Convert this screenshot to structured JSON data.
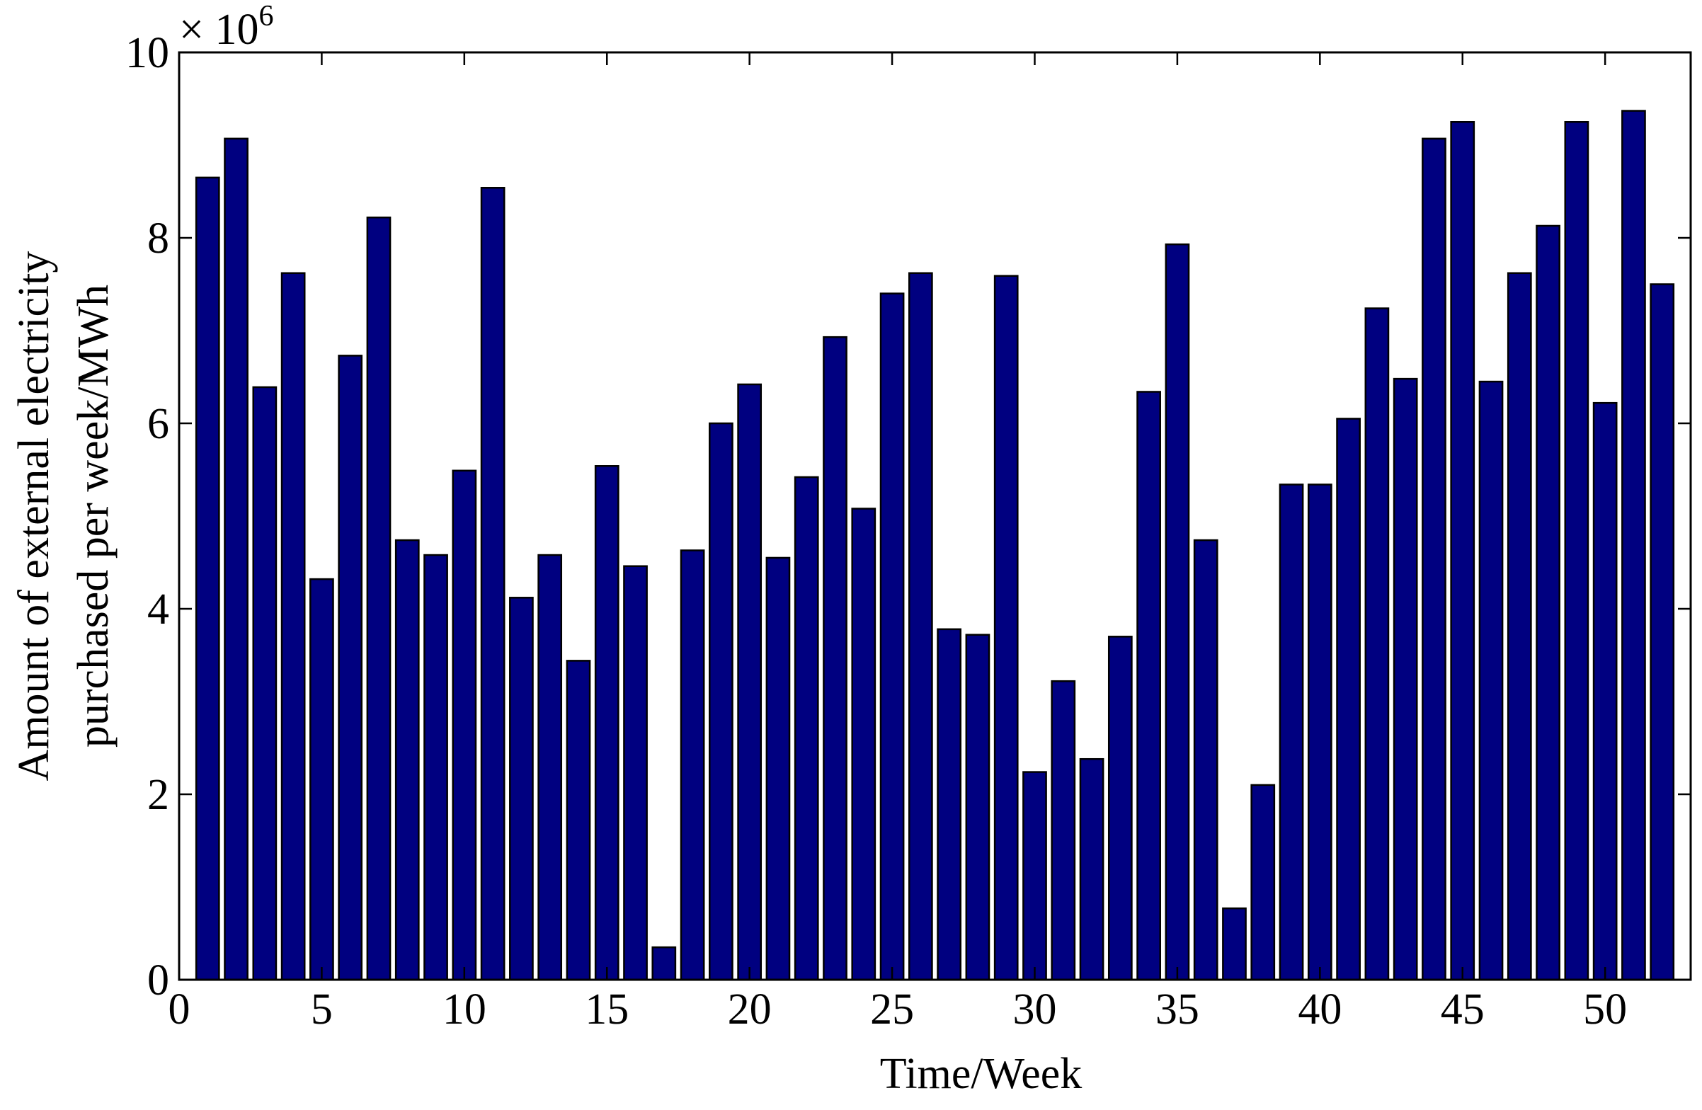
{
  "chart_data": {
    "type": "bar",
    "title": "",
    "xlabel": "Time/Week",
    "ylabel_lines": [
      "Amount of external electricity",
      "purchased per week/MWh"
    ],
    "y_exponent_label": "× 10",
    "y_exponent_power": "6",
    "xlim": [
      0,
      53
    ],
    "ylim": [
      0,
      10
    ],
    "x_ticks": [
      0,
      5,
      10,
      15,
      20,
      25,
      30,
      35,
      40,
      45,
      50
    ],
    "y_ticks": [
      0,
      2,
      4,
      6,
      8,
      10
    ],
    "grid": false,
    "bar_color": "#000080",
    "x": [
      1,
      2,
      3,
      4,
      5,
      6,
      7,
      8,
      9,
      10,
      11,
      12,
      13,
      14,
      15,
      16,
      17,
      18,
      19,
      20,
      21,
      22,
      23,
      24,
      25,
      26,
      27,
      28,
      29,
      30,
      31,
      32,
      33,
      34,
      35,
      36,
      37,
      38,
      39,
      40,
      41,
      42,
      43,
      44,
      45,
      46,
      47,
      48,
      49,
      50,
      51,
      52
    ],
    "values": [
      8.65,
      9.07,
      6.39,
      7.62,
      4.32,
      6.73,
      8.22,
      4.74,
      4.58,
      5.49,
      8.54,
      4.12,
      4.58,
      3.44,
      5.54,
      4.46,
      0.35,
      4.63,
      6.0,
      6.42,
      4.55,
      5.42,
      6.93,
      5.08,
      7.4,
      7.62,
      3.78,
      3.72,
      7.59,
      2.24,
      3.22,
      2.38,
      3.7,
      6.34,
      7.93,
      4.74,
      0.77,
      2.1,
      5.34,
      5.34,
      6.05,
      7.24,
      6.48,
      9.07,
      9.25,
      6.45,
      7.62,
      8.13,
      9.25,
      6.22,
      9.37,
      7.5
    ],
    "value_scale_note": "values in units of 10^6 MWh"
  }
}
